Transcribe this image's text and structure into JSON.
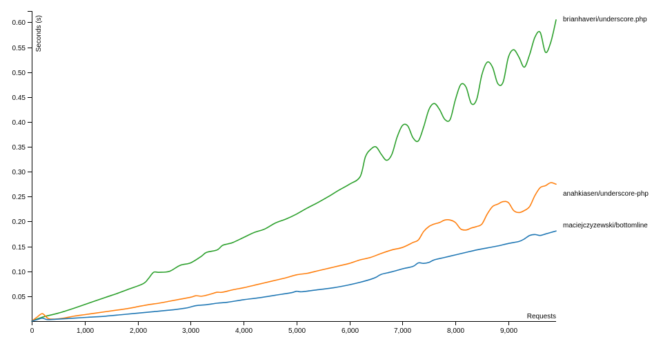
{
  "chart_data": {
    "type": "line",
    "title": "",
    "xlabel": "Requests",
    "ylabel": "Seconds (s)",
    "xlim": [
      0,
      9900
    ],
    "ylim": [
      0,
      0.62
    ],
    "xticks": [
      0,
      1000,
      2000,
      3000,
      4000,
      5000,
      6000,
      7000,
      8000,
      9000
    ],
    "xtick_labels": [
      "0",
      "1,000",
      "2,000",
      "3,000",
      "4,000",
      "5,000",
      "6,000",
      "7,000",
      "8,000",
      "9,000"
    ],
    "yticks": [
      0.05,
      0.1,
      0.15,
      0.2,
      0.25,
      0.3,
      0.35,
      0.4,
      0.45,
      0.5,
      0.55,
      0.6
    ],
    "ytick_labels": [
      "0.05",
      "0.10",
      "0.15",
      "0.20",
      "0.25",
      "0.30",
      "0.35",
      "0.40",
      "0.45",
      "0.50",
      "0.55",
      "0.60"
    ],
    "grid": false,
    "legend": "inline labels at line ends",
    "series": [
      {
        "name": "brianhaveri/underscore.php",
        "color": "#2ca02c",
        "x": [
          0,
          200,
          500,
          800,
          1100,
          1400,
          1600,
          1800,
          2100,
          2200,
          2300,
          2400,
          2600,
          2800,
          3000,
          3200,
          3300,
          3500,
          3600,
          3700,
          3800,
          4000,
          4200,
          4400,
          4600,
          4800,
          5000,
          5200,
          5400,
          5600,
          5800,
          6000,
          6200,
          6300,
          6400,
          6500,
          6600,
          6700,
          6800,
          6900,
          7000,
          7100,
          7200,
          7300,
          7400,
          7500,
          7600,
          7700,
          7800,
          7900,
          8000,
          8100,
          8200,
          8300,
          8400,
          8500,
          8600,
          8700,
          8800,
          8900,
          9000,
          9100,
          9200,
          9300,
          9400,
          9500,
          9600,
          9700,
          9800,
          9900
        ],
        "y": [
          0.0,
          0.008,
          0.016,
          0.026,
          0.037,
          0.048,
          0.055,
          0.063,
          0.075,
          0.085,
          0.098,
          0.098,
          0.1,
          0.112,
          0.117,
          0.13,
          0.138,
          0.143,
          0.152,
          0.155,
          0.158,
          0.168,
          0.178,
          0.185,
          0.197,
          0.205,
          0.215,
          0.227,
          0.238,
          0.25,
          0.263,
          0.275,
          0.29,
          0.33,
          0.345,
          0.35,
          0.335,
          0.323,
          0.335,
          0.37,
          0.393,
          0.392,
          0.368,
          0.362,
          0.39,
          0.425,
          0.437,
          0.425,
          0.405,
          0.405,
          0.445,
          0.475,
          0.47,
          0.437,
          0.445,
          0.495,
          0.52,
          0.51,
          0.477,
          0.48,
          0.53,
          0.545,
          0.53,
          0.51,
          0.535,
          0.57,
          0.58,
          0.54,
          0.56,
          0.605
        ]
      },
      {
        "name": "anahkiasen/underscore-php",
        "color": "#ff7f0e",
        "x": [
          0,
          100,
          200,
          300,
          400,
          600,
          800,
          1000,
          1200,
          1400,
          1600,
          1800,
          2000,
          2200,
          2400,
          2600,
          2800,
          3000,
          3100,
          3200,
          3300,
          3400,
          3500,
          3600,
          3800,
          4000,
          4200,
          4400,
          4600,
          4800,
          5000,
          5200,
          5400,
          5600,
          5800,
          6000,
          6200,
          6400,
          6600,
          6800,
          7000,
          7200,
          7300,
          7400,
          7500,
          7600,
          7700,
          7800,
          7900,
          8000,
          8100,
          8200,
          8300,
          8400,
          8500,
          8600,
          8700,
          8800,
          8900,
          9000,
          9100,
          9200,
          9300,
          9400,
          9500,
          9600,
          9700,
          9800,
          9900
        ],
        "y": [
          0.0,
          0.008,
          0.015,
          0.006,
          0.004,
          0.006,
          0.01,
          0.013,
          0.016,
          0.019,
          0.022,
          0.025,
          0.029,
          0.033,
          0.036,
          0.04,
          0.044,
          0.048,
          0.051,
          0.05,
          0.052,
          0.055,
          0.058,
          0.058,
          0.063,
          0.067,
          0.072,
          0.077,
          0.082,
          0.087,
          0.093,
          0.096,
          0.101,
          0.106,
          0.111,
          0.116,
          0.123,
          0.128,
          0.136,
          0.143,
          0.148,
          0.158,
          0.163,
          0.18,
          0.19,
          0.195,
          0.198,
          0.203,
          0.203,
          0.198,
          0.185,
          0.183,
          0.187,
          0.19,
          0.195,
          0.215,
          0.23,
          0.235,
          0.24,
          0.238,
          0.222,
          0.218,
          0.222,
          0.23,
          0.252,
          0.268,
          0.272,
          0.278,
          0.275
        ]
      },
      {
        "name": "maciejczyzewski/bottomline",
        "color": "#1f77b4",
        "x": [
          0,
          100,
          200,
          300,
          500,
          800,
          1100,
          1400,
          1700,
          2000,
          2300,
          2600,
          2900,
          3100,
          3300,
          3500,
          3700,
          4000,
          4300,
          4600,
          4900,
          5000,
          5100,
          5400,
          5700,
          6000,
          6200,
          6400,
          6500,
          6600,
          6800,
          7000,
          7200,
          7300,
          7400,
          7500,
          7600,
          7800,
          8000,
          8200,
          8400,
          8600,
          8800,
          9000,
          9200,
          9300,
          9400,
          9500,
          9600,
          9700,
          9800,
          9900
        ],
        "y": [
          0.0,
          0.003,
          0.006,
          0.003,
          0.004,
          0.006,
          0.008,
          0.01,
          0.013,
          0.016,
          0.019,
          0.022,
          0.026,
          0.031,
          0.033,
          0.036,
          0.038,
          0.043,
          0.047,
          0.052,
          0.057,
          0.06,
          0.059,
          0.063,
          0.067,
          0.073,
          0.078,
          0.084,
          0.088,
          0.094,
          0.099,
          0.105,
          0.11,
          0.117,
          0.116,
          0.118,
          0.123,
          0.128,
          0.133,
          0.138,
          0.143,
          0.147,
          0.151,
          0.156,
          0.16,
          0.165,
          0.172,
          0.174,
          0.172,
          0.175,
          0.178,
          0.181
        ]
      }
    ]
  }
}
